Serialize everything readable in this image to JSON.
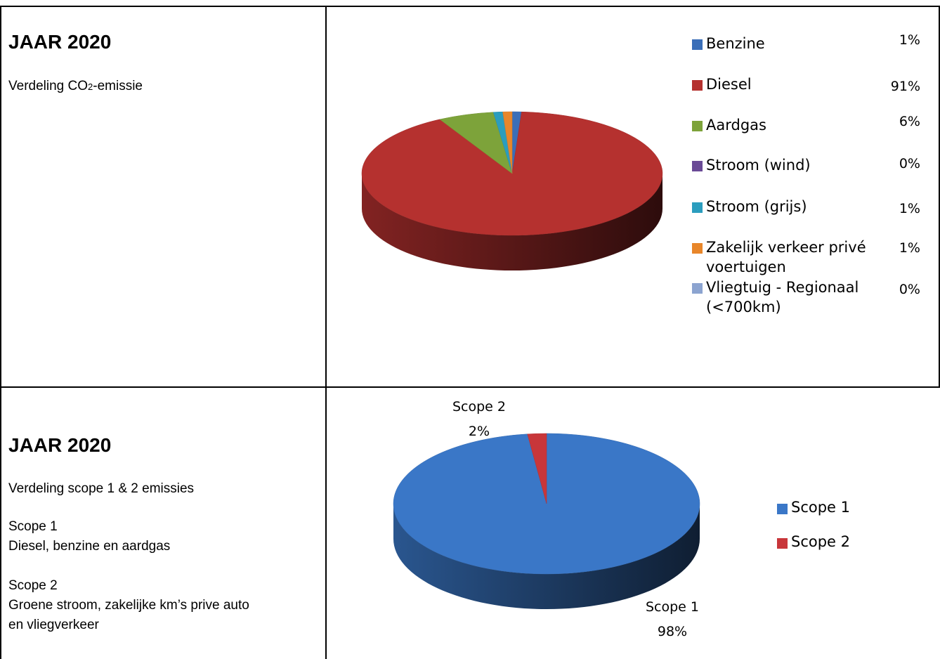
{
  "top": {
    "title": "JAAR 2020",
    "subtitle_prefix": "Verdeling CO",
    "subtitle_sub": "2",
    "subtitle_suffix": "-emissie"
  },
  "bottom": {
    "title": "JAAR 2020",
    "subtitle": "Verdeling scope 1 & 2 emissies",
    "scope1_head": "Scope 1",
    "scope1_desc": "Diesel, benzine en aardgas",
    "scope2_head": "Scope 2",
    "scope2_desc_line1": "Groene stroom, zakelijke km’s prive auto",
    "scope2_desc_line2": "en vliegverkeer"
  },
  "chart_data": [
    {
      "type": "pie",
      "title": "",
      "legend_position": "right",
      "categories": [
        "Benzine",
        "Diesel",
        "Aardgas",
        "Stroom (wind)",
        "Stroom (grijs)",
        "Zakelijk verkeer privé voertuigen",
        "Vliegtuig - Regionaal (<700km)"
      ],
      "legend_lines": [
        [
          "Benzine"
        ],
        [
          "Diesel"
        ],
        [
          "Aardgas"
        ],
        [
          "Stroom (wind)"
        ],
        [
          "Stroom (grijs)"
        ],
        [
          "Zakelijk verkeer privé",
          "voertuigen"
        ],
        [
          "Vliegtuig - Regionaal",
          "(<700km)"
        ]
      ],
      "labels": [
        "1%",
        "91%",
        "6%",
        "0%",
        "1%",
        "1%",
        "0%"
      ],
      "values": [
        1,
        91,
        6,
        0,
        1,
        1,
        0
      ],
      "colors": [
        "#3A6EB8",
        "#B5312F",
        "#7DA33A",
        "#6A4A96",
        "#2B9DBE",
        "#E8862A",
        "#8CA4D0"
      ]
    },
    {
      "type": "pie",
      "title": "",
      "legend_position": "right",
      "categories": [
        "Scope 1",
        "Scope 2"
      ],
      "labels": [
        "98%",
        "2%"
      ],
      "values": [
        98,
        2
      ],
      "colors": [
        "#3A77C7",
        "#C8363A"
      ]
    }
  ]
}
